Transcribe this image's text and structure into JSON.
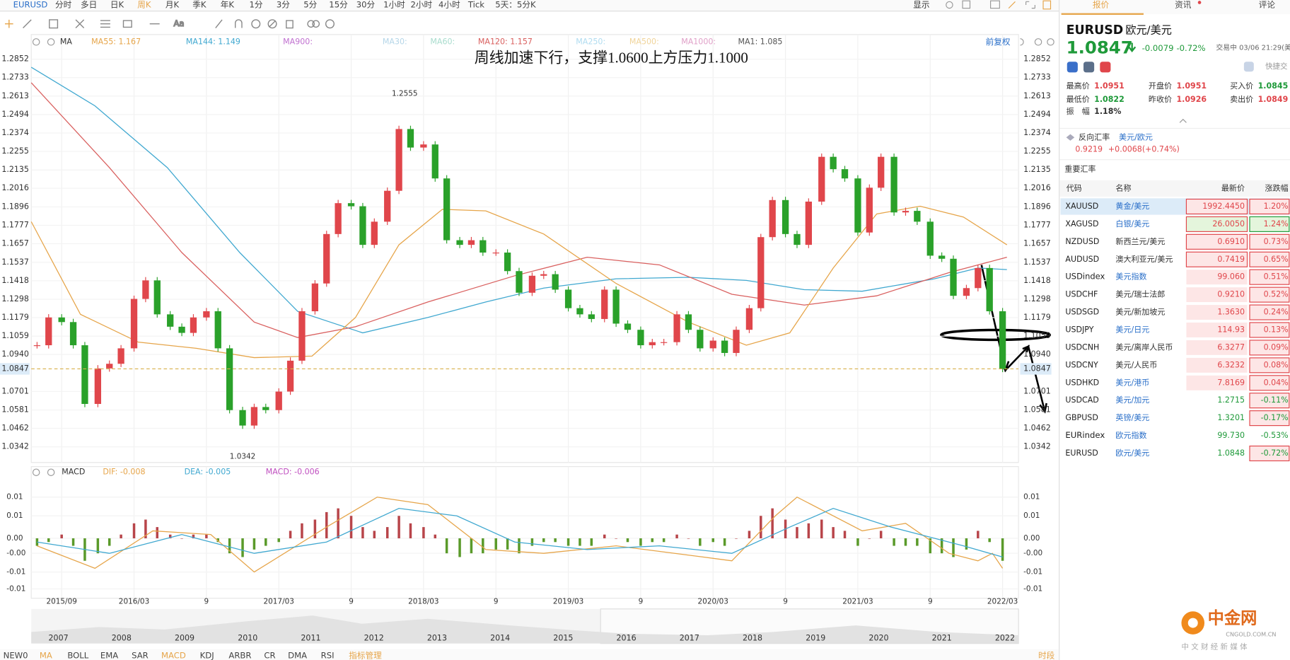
{
  "toolbar": {
    "symbol": "EURUSD",
    "periods": [
      "分时",
      "多日",
      "日K",
      "周K",
      "月K",
      "季K",
      "年K",
      "1分",
      "3分",
      "5分",
      "15分",
      "30分",
      "1小时",
      "2小时",
      "4小时",
      "Tick",
      "5天：5分K"
    ],
    "active_period": "周K",
    "display": "显示"
  },
  "chart_data": [
    {
      "type": "candlestick",
      "title": "周线加速下行，支撑1.0600上方压力1.1000",
      "legend_label": "MA",
      "adjust": "前复权",
      "legend": [
        {
          "text": "MA55: 1.167",
          "color": "#e6a54a"
        },
        {
          "text": "MA144: 1.149",
          "color": "#40a8d0"
        },
        {
          "text": "MA900:",
          "color": "#c070d0"
        },
        {
          "text": "MA30:",
          "color": "#b5d6e8"
        },
        {
          "text": "MA60:",
          "color": "#a8dccd"
        },
        {
          "text": "MA120: 1.157",
          "color": "#d9605f"
        },
        {
          "text": "MA250:",
          "color": "#b0dcf0"
        },
        {
          "text": "MA500:",
          "color": "#f0d49a"
        },
        {
          "text": "MA1000:",
          "color": "#e0a0c8"
        },
        {
          "text": "MA1: 1.085",
          "color": "#555555"
        }
      ],
      "x": [
        2015.5,
        2015.58,
        2015.67,
        2015.75,
        2015.83,
        2015.92,
        2016,
        2016.08,
        2016.17,
        2016.25,
        2016.33,
        2016.42,
        2016.5,
        2016.58,
        2016.67,
        2016.75,
        2016.83,
        2016.92,
        2017,
        2017.08,
        2017.17,
        2017.25,
        2017.33,
        2017.42,
        2017.5,
        2017.58,
        2017.67,
        2017.75,
        2017.83,
        2017.92,
        2018,
        2018.08,
        2018.17,
        2018.25,
        2018.33,
        2018.42,
        2018.5,
        2018.58,
        2018.67,
        2018.75,
        2018.83,
        2018.92,
        2019,
        2019.08,
        2019.17,
        2019.25,
        2019.33,
        2019.42,
        2019.5,
        2019.58,
        2019.67,
        2019.75,
        2019.83,
        2019.92,
        2020,
        2020.08,
        2020.17,
        2020.25,
        2020.33,
        2020.42,
        2020.5,
        2020.58,
        2020.67,
        2020.75,
        2020.83,
        2020.92,
        2021,
        2021.08,
        2021.17,
        2021.25,
        2021.33,
        2021.42,
        2021.5,
        2021.58,
        2021.67,
        2021.75,
        2021.83,
        2021.92,
        2022,
        2022.08,
        2022.17
      ],
      "values": [
        1.1,
        1.118,
        1.115,
        1.1,
        1.062,
        1.085,
        1.088,
        1.098,
        1.13,
        1.142,
        1.12,
        1.112,
        1.108,
        1.118,
        1.122,
        1.098,
        1.058,
        1.048,
        1.06,
        1.058,
        1.07,
        1.09,
        1.122,
        1.14,
        1.172,
        1.192,
        1.19,
        1.165,
        1.18,
        1.2,
        1.24,
        1.228,
        1.23,
        1.208,
        1.168,
        1.165,
        1.168,
        1.16,
        1.16,
        1.148,
        1.134,
        1.145,
        1.146,
        1.136,
        1.124,
        1.12,
        1.117,
        1.136,
        1.114,
        1.11,
        1.1,
        1.102,
        1.102,
        1.12,
        1.11,
        1.098,
        1.103,
        1.095,
        1.11,
        1.124,
        1.17,
        1.194,
        1.172,
        1.165,
        1.193,
        1.222,
        1.214,
        1.208,
        1.173,
        1.202,
        1.222,
        1.186,
        1.187,
        1.18,
        1.158,
        1.156,
        1.132,
        1.137,
        1.15,
        1.122,
        1.0847
      ],
      "series": [
        {
          "color": "#40a8d0",
          "x": [
            2015.46,
            2015.9,
            2016.4,
            2016.9,
            2017.3,
            2017.75,
            2018.2,
            2018.6,
            2019,
            2019.5,
            2020,
            2020.4,
            2020.8,
            2021.2,
            2021.7,
            2022,
            2022.2
          ],
          "values": [
            1.28,
            1.255,
            1.215,
            1.16,
            1.122,
            1.108,
            1.118,
            1.128,
            1.137,
            1.143,
            1.144,
            1.142,
            1.136,
            1.135,
            1.143,
            1.15,
            1.149
          ]
        },
        {
          "color": "#d9605f",
          "x": [
            2015.46,
            2016,
            2016.5,
            2017,
            2017.3,
            2017.7,
            2018.2,
            2018.8,
            2019.3,
            2019.8,
            2020.3,
            2020.8,
            2021.3,
            2021.8,
            2022.2
          ],
          "values": [
            1.27,
            1.215,
            1.16,
            1.115,
            1.105,
            1.112,
            1.128,
            1.145,
            1.157,
            1.152,
            1.133,
            1.126,
            1.132,
            1.147,
            1.157
          ]
        },
        {
          "color": "#e6a54a",
          "x": [
            2015.46,
            2015.8,
            2016.2,
            2016.6,
            2017,
            2017.4,
            2017.7,
            2018,
            2018.3,
            2018.6,
            2019,
            2019.5,
            2020,
            2020.4,
            2020.7,
            2021,
            2021.3,
            2021.6,
            2021.9,
            2022.2
          ],
          "values": [
            1.18,
            1.12,
            1.102,
            1.098,
            1.092,
            1.093,
            1.118,
            1.165,
            1.188,
            1.187,
            1.172,
            1.14,
            1.115,
            1.1,
            1.108,
            1.15,
            1.185,
            1.19,
            1.183,
            1.165
          ]
        }
      ],
      "current": 1.0847,
      "annotations": [
        {
          "x": 2018.04,
          "value": 1.2555
        },
        {
          "x": 2016.92,
          "value": 1.0342
        }
      ],
      "xlim": [
        2015.46,
        2022.28
      ],
      "ylim": [
        1.0241,
        1.2905
      ],
      "yticks": [
        1.2852,
        1.2733,
        1.2613,
        1.2494,
        1.2374,
        1.2255,
        1.2135,
        1.2016,
        1.1896,
        1.1777,
        1.1657,
        1.1537,
        1.1418,
        1.1298,
        1.1179,
        1.1059,
        {
          "value": 1.094,
          "label": "1.0940"
        },
        1.0701,
        1.0581,
        1.0462,
        1.0342
      ],
      "up_color": "#e0464b",
      "down_color": "#2aa12a"
    },
    {
      "type": "bar",
      "legend_label": "MACD",
      "legend": [
        {
          "text": "DIF: -0.008",
          "color": "#e6a54a"
        },
        {
          "text": "DEA: -0.005",
          "color": "#40a8d0"
        },
        {
          "text": "MACD: -0.006",
          "color": "#c050c0"
        }
      ],
      "x": [
        2015.5,
        2015.58,
        2015.67,
        2015.75,
        2015.83,
        2015.92,
        2016,
        2016.08,
        2016.17,
        2016.25,
        2016.33,
        2016.42,
        2016.5,
        2016.58,
        2016.67,
        2016.75,
        2016.83,
        2016.92,
        2017,
        2017.08,
        2017.17,
        2017.25,
        2017.33,
        2017.42,
        2017.5,
        2017.58,
        2017.67,
        2017.75,
        2017.83,
        2017.92,
        2018,
        2018.08,
        2018.17,
        2018.25,
        2018.33,
        2018.42,
        2018.5,
        2018.58,
        2018.67,
        2018.75,
        2018.83,
        2018.92,
        2019,
        2019.08,
        2019.17,
        2019.25,
        2019.33,
        2019.42,
        2019.5,
        2019.58,
        2019.67,
        2019.75,
        2019.83,
        2019.92,
        2020,
        2020.08,
        2020.17,
        2020.25,
        2020.33,
        2020.42,
        2020.5,
        2020.58,
        2020.67,
        2020.75,
        2020.83,
        2020.92,
        2021,
        2021.08,
        2021.17,
        2021.25,
        2021.33,
        2021.42,
        2021.5,
        2021.58,
        2021.67,
        2021.75,
        2021.83,
        2021.92,
        2022,
        2022.08,
        2022.17
      ],
      "values": [
        -0.002,
        -0.001,
        0.001,
        -0.002,
        -0.006,
        -0.004,
        -0.002,
        0.001,
        0.004,
        0.005,
        0.003,
        0.001,
        0,
        0.001,
        0.001,
        -0.001,
        -0.004,
        -0.005,
        -0.003,
        -0.002,
        -0.001,
        0.002,
        0.004,
        0.005,
        0.007,
        0.008,
        0.006,
        0.003,
        0.002,
        0.003,
        0.006,
        0.004,
        0.003,
        0.001,
        -0.004,
        -0.005,
        -0.004,
        -0.004,
        -0.003,
        -0.003,
        -0.004,
        -0.002,
        -0.001,
        -0.001,
        -0.002,
        -0.002,
        -0.002,
        0.001,
        0,
        -0.001,
        -0.002,
        -0.001,
        -0.001,
        0.001,
        0,
        -0.002,
        -0.001,
        -0.002,
        0,
        0.002,
        0.006,
        0.008,
        0.005,
        0.003,
        0.004,
        0.005,
        0.003,
        0.002,
        -0.002,
        0,
        0.002,
        -0.002,
        -0.002,
        -0.002,
        -0.004,
        -0.004,
        -0.005,
        -0.003,
        0.002,
        -0.001,
        -0.006
      ],
      "series": [
        {
          "color": "#e6a54a",
          "x": [
            2015.5,
            2015.9,
            2016.3,
            2016.7,
            2017,
            2017.5,
            2017.85,
            2018.2,
            2018.6,
            2019,
            2019.5,
            2020.1,
            2020.3,
            2020.6,
            2020.75,
            2021.2,
            2021.5,
            2021.8,
            2022,
            2022.1,
            2022.17
          ],
          "values": [
            -0.002,
            -0.008,
            0.002,
            0.001,
            -0.009,
            0.003,
            0.011,
            0.009,
            -0.003,
            -0.004,
            -0.002,
            -0.005,
            -0.006,
            0.006,
            0.011,
            0.002,
            0.004,
            -0.004,
            -0.006,
            -0.004,
            -0.008
          ]
        },
        {
          "color": "#40a8d0",
          "x": [
            2015.5,
            2016,
            2016.5,
            2017,
            2017.5,
            2018,
            2018.4,
            2018.8,
            2019.3,
            2019.8,
            2020.3,
            2020.7,
            2021,
            2021.4,
            2021.9,
            2022.17
          ],
          "values": [
            -0.001,
            -0.004,
            0.001,
            -0.004,
            -0.001,
            0.008,
            0.006,
            -0.001,
            -0.003,
            -0.002,
            -0.004,
            0.003,
            0.008,
            0.003,
            -0.002,
            -0.005
          ]
        }
      ],
      "xlim": [
        2015.46,
        2022.28
      ],
      "ylim": [
        -0.0149,
        0.0141
      ],
      "yticks": [
        {
          "value": 0.011,
          "label": "0.01"
        },
        {
          "value": 0.006,
          "label": "0.01"
        },
        {
          "value": 0,
          "label": "0.00"
        },
        {
          "value": -0.004,
          "label": "-0.00"
        },
        {
          "value": -0.009,
          "label": "-0.01"
        },
        {
          "value": -0.0135,
          "label": "-0.01"
        }
      ],
      "xticks": [
        {
          "value": 2015.67,
          "label": "2015/09"
        },
        {
          "value": 2016.17,
          "label": "2016/03"
        },
        {
          "value": 2016.67,
          "label": "9"
        },
        {
          "value": 2017.17,
          "label": "2017/03"
        },
        {
          "value": 2017.67,
          "label": "9"
        },
        {
          "value": 2018.17,
          "label": "2018/03"
        },
        {
          "value": 2018.67,
          "label": "9"
        },
        {
          "value": 2019.17,
          "label": "2019/03"
        },
        {
          "value": 2019.67,
          "label": "9"
        },
        {
          "value": 2020.17,
          "label": "2020/03"
        },
        {
          "value": 2020.67,
          "label": "9"
        },
        {
          "value": 2021.17,
          "label": "2021/03"
        },
        {
          "value": 2021.67,
          "label": "9"
        },
        {
          "value": 2022.17,
          "label": "2022/03"
        }
      ]
    }
  ],
  "navigator": {
    "years": [
      "2007",
      "2008",
      "2009",
      "2010",
      "2011",
      "2012",
      "2013",
      "2014",
      "2015",
      "2016",
      "2017",
      "2018",
      "2019",
      "2020",
      "2021",
      "2022"
    ]
  },
  "indicators": {
    "tabs": [
      "NEW0",
      "MA",
      "BOLL",
      "EMA",
      "SAR",
      "MACD",
      "KDJ",
      "ARBR",
      "CR",
      "DMA",
      "RSI"
    ],
    "active": [
      "MA",
      "MACD"
    ],
    "manage": "指标管理",
    "period": "时段"
  },
  "quote": {
    "tabs": [
      "报价",
      "资讯",
      "评论"
    ],
    "symbol": "EURUSD",
    "name": "欧元/美元",
    "price": 1.0847,
    "change": "-0.0079",
    "change_pct": "-0.72%",
    "status": "交易中 03/06 21:29(美",
    "quick": "快捷交",
    "stats": [
      {
        "label": "最高价",
        "value": "1.0951"
      },
      {
        "label": "开盘价",
        "value": "1.0951"
      },
      {
        "label": "买入价",
        "value": "1.0845"
      },
      {
        "label": "最低价",
        "value": "1.0822"
      },
      {
        "label": "昨收价",
        "value": "1.0926"
      },
      {
        "label": "卖出价",
        "value": "1.0849"
      },
      {
        "label": "振　幅",
        "value": "1.18%"
      }
    ],
    "reverse": {
      "label": "反向汇率",
      "pair": "美元/欧元",
      "price": "0.9219",
      "change": "+0.0068(+0.74%)"
    }
  },
  "rates": {
    "title": "重要汇率",
    "columns": [
      "代码",
      "名称",
      "最新价",
      "涨跌幅"
    ],
    "rows": [
      [
        "XAUUSD",
        "黄金/美元",
        "1992.4450",
        "1.20%"
      ],
      [
        "XAGUSD",
        "白银/美元",
        "26.0050",
        "1.24%"
      ],
      [
        "NZDUSD",
        "新西兰元/美元",
        "0.6910",
        "0.73%"
      ],
      [
        "AUDUSD",
        "澳大利亚元/美元",
        "0.7419",
        "0.65%"
      ],
      [
        "USDindex",
        "美元指数",
        "99.060",
        "0.51%"
      ],
      [
        "USDCHF",
        "美元/瑞士法郎",
        "0.9210",
        "0.52%"
      ],
      [
        "USDSGD",
        "美元/新加坡元",
        "1.3630",
        "0.24%"
      ],
      [
        "USDJPY",
        "美元/日元",
        "114.93",
        "0.13%"
      ],
      [
        "USDCNH",
        "美元/离岸人民币",
        "6.3277",
        "0.09%"
      ],
      [
        "USDCNY",
        "美元/人民币",
        "6.3232",
        "0.08%"
      ],
      [
        "USDHKD",
        "美元/港币",
        "7.8169",
        "0.04%"
      ],
      [
        "USDCAD",
        "美元/加元",
        "1.2715",
        "-0.11%"
      ],
      [
        "GBPUSD",
        "英镑/美元",
        "1.3201",
        "-0.17%"
      ],
      [
        "EURindex",
        "欧元指数",
        "99.730",
        "-0.53%"
      ],
      [
        "EURUSD",
        "欧元/美元",
        "1.0848",
        "-0.72%"
      ]
    ]
  },
  "logo": {
    "name": "中金网",
    "domain": "CNGOLD.COM.CN",
    "slogan": "中 文 财 经 新 媒 体"
  }
}
